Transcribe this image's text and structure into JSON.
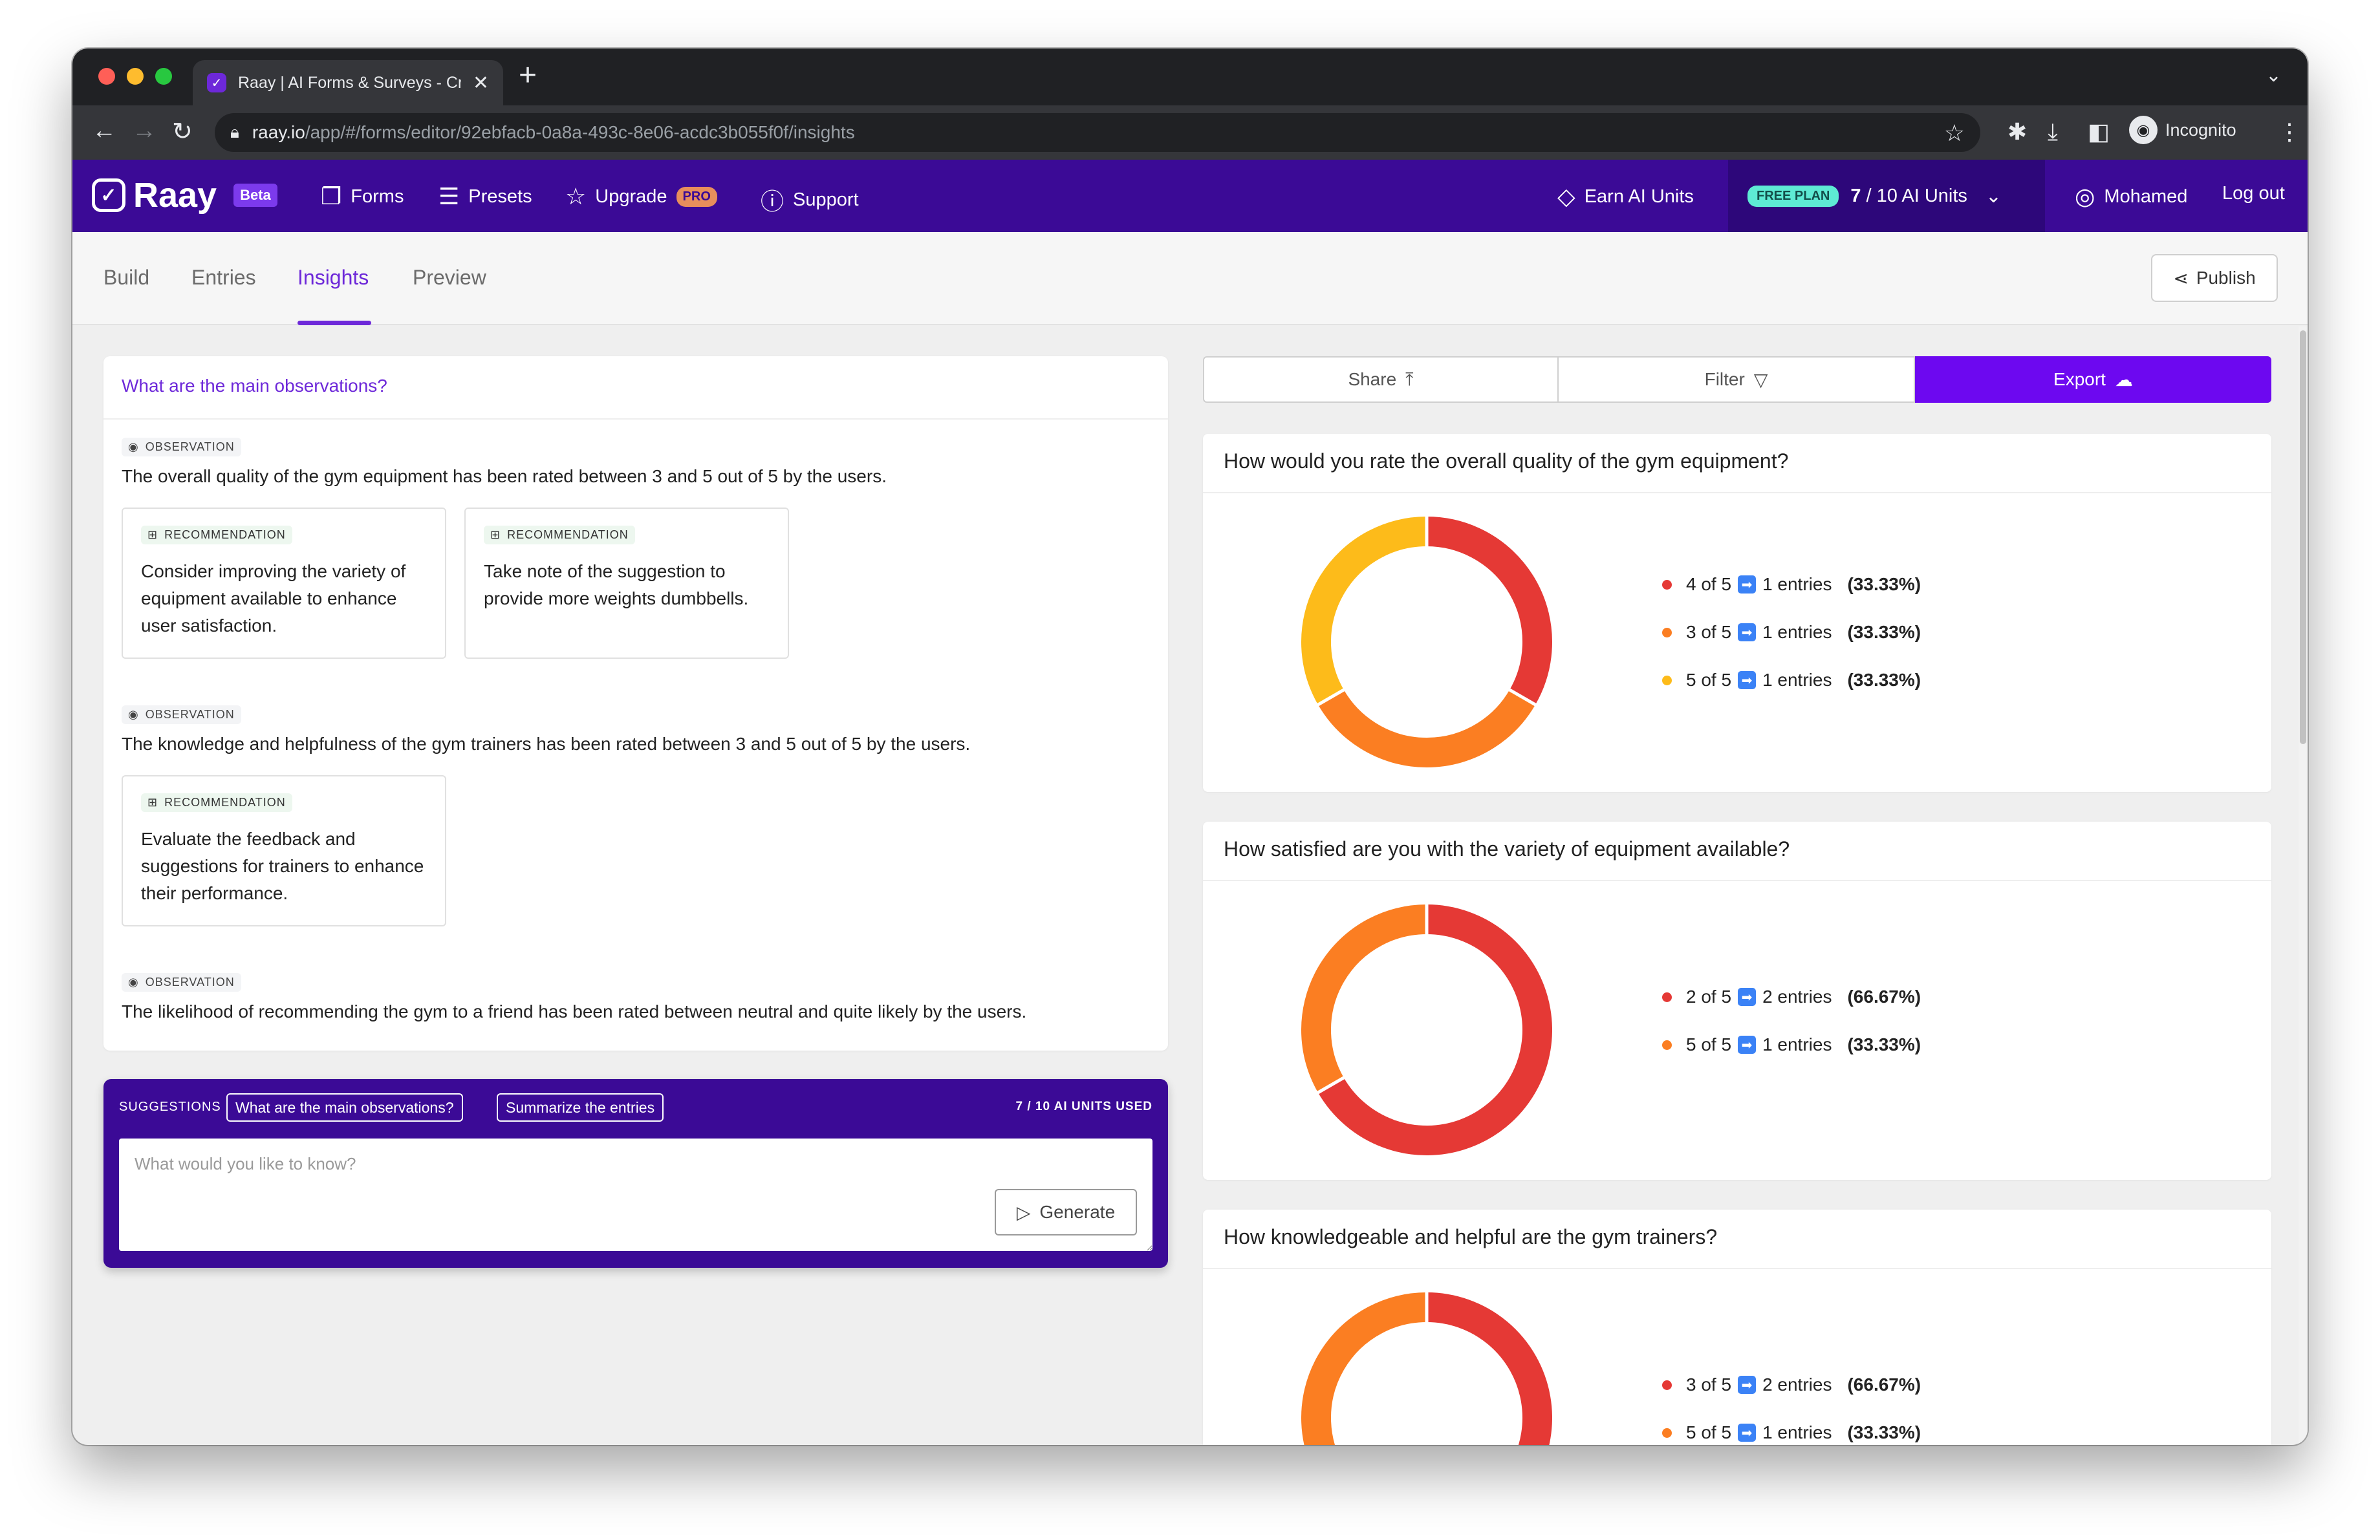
{
  "browser": {
    "tab_title": "Raay | AI Forms & Surveys - Cr",
    "url_host": "raay.io",
    "url_path": "/app/#/forms/editor/92ebfacb-0a8a-493c-8e06-acdc3b055f0f/insights",
    "profile_label": "Incognito"
  },
  "header": {
    "logo": "Raay",
    "beta": "Beta",
    "nav": {
      "forms": "Forms",
      "presets": "Presets",
      "upgrade": "Upgrade",
      "pro": "PRO",
      "support": "Support"
    },
    "earn": "Earn AI Units",
    "plan": "FREE PLAN",
    "units_used": "7",
    "units_total": "/ 10 AI Units",
    "user": "Mohamed",
    "logout": "Log out"
  },
  "subnav": {
    "tabs": [
      "Build",
      "Entries",
      "Insights",
      "Preview"
    ],
    "active": "Insights",
    "publish": "Publish"
  },
  "insights": {
    "question": "What are the main observations?",
    "observation_tag": "OBSERVATION",
    "recommendation_tag": "RECOMMENDATION",
    "observations": [
      {
        "text": "The overall quality of the gym equipment has been rated between 3 and 5 out of 5 by the users.",
        "recommendations": [
          "Consider improving the variety of equipment available to enhance user satisfaction.",
          "Take note of the suggestion to provide more weights dumbbells."
        ]
      },
      {
        "text": "The knowledge and helpfulness of the gym trainers has been rated between 3 and 5 out of 5 by the users.",
        "recommendations": [
          "Evaluate the feedback and suggestions for trainers to enhance their performance."
        ]
      },
      {
        "text": "The likelihood of recommending the gym to a friend has been rated between neutral and quite likely by the users.",
        "recommendations": []
      }
    ]
  },
  "suggestions": {
    "label": "SUGGESTIONS",
    "chips": [
      "What are the main observations?",
      "Summarize the entries"
    ],
    "units": "7 / 10 AI UNITS USED",
    "placeholder": "What would you like to know?",
    "generate": "Generate"
  },
  "actions": {
    "share": "Share",
    "filter": "Filter",
    "export": "Export"
  },
  "colors": {
    "red": "#e53935",
    "orange": "#fb7e22",
    "yellow": "#fdbb1a",
    "accent": "#6d28d9",
    "header_bg": "#3b0a96"
  },
  "chart_data": [
    {
      "type": "pie",
      "title": "How would you rate the overall quality of the gym equipment?",
      "slices": [
        {
          "label": "4 of 5",
          "entries": 1,
          "entries_text": "1 entries",
          "percent": 33.33,
          "percent_text": "(33.33%)",
          "color": "#e53935"
        },
        {
          "label": "3 of 5",
          "entries": 1,
          "entries_text": "1 entries",
          "percent": 33.33,
          "percent_text": "(33.33%)",
          "color": "#fb7e22"
        },
        {
          "label": "5 of 5",
          "entries": 1,
          "entries_text": "1 entries",
          "percent": 33.33,
          "percent_text": "(33.33%)",
          "color": "#fdbb1a"
        }
      ]
    },
    {
      "type": "pie",
      "title": "How satisfied are you with the variety of equipment available?",
      "slices": [
        {
          "label": "2 of 5",
          "entries": 2,
          "entries_text": "2 entries",
          "percent": 66.67,
          "percent_text": "(66.67%)",
          "color": "#e53935"
        },
        {
          "label": "5 of 5",
          "entries": 1,
          "entries_text": "1 entries",
          "percent": 33.33,
          "percent_text": "(33.33%)",
          "color": "#fb7e22"
        }
      ]
    },
    {
      "type": "pie",
      "title": "How knowledgeable and helpful are the gym trainers?",
      "slices": [
        {
          "label": "3 of 5",
          "entries": 2,
          "entries_text": "2 entries",
          "percent": 66.67,
          "percent_text": "(66.67%)",
          "color": "#e53935"
        },
        {
          "label": "5 of 5",
          "entries": 1,
          "entries_text": "1 entries",
          "percent": 33.33,
          "percent_text": "(33.33%)",
          "color": "#fb7e22"
        }
      ]
    }
  ]
}
